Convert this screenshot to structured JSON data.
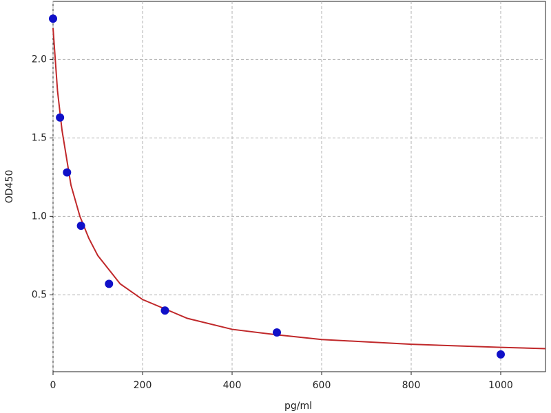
{
  "chart_data": {
    "type": "scatter",
    "x_label": "pg/ml",
    "y_label": "OD450",
    "xlim": [
      0,
      1100
    ],
    "ylim": [
      0.01,
      2.37
    ],
    "xticks": [
      0,
      200,
      400,
      600,
      800,
      1000
    ],
    "yticks": [
      0.5,
      {
        "value": 1,
        "label": "1.0"
      },
      1.5,
      {
        "value": 2,
        "label": "2.0"
      }
    ],
    "grid": true,
    "series": [
      {
        "type": "line",
        "color": "#c0282a",
        "x": [
          0,
          10,
          20,
          40,
          60,
          80,
          100,
          150,
          200,
          300,
          400,
          500,
          600,
          800,
          1000,
          1100
        ],
        "values": [
          2.2,
          1.8,
          1.55,
          1.2,
          1.0,
          0.86,
          0.75,
          0.57,
          0.47,
          0.35,
          0.28,
          0.245,
          0.215,
          0.185,
          0.165,
          0.157
        ]
      },
      {
        "type": "scatter",
        "color": "#1010c8",
        "x": [
          0,
          15.6,
          31.25,
          62.5,
          125,
          250,
          500,
          1000
        ],
        "values": [
          2.26,
          1.63,
          1.28,
          0.94,
          0.57,
          0.4,
          0.26,
          0.12
        ]
      }
    ]
  }
}
